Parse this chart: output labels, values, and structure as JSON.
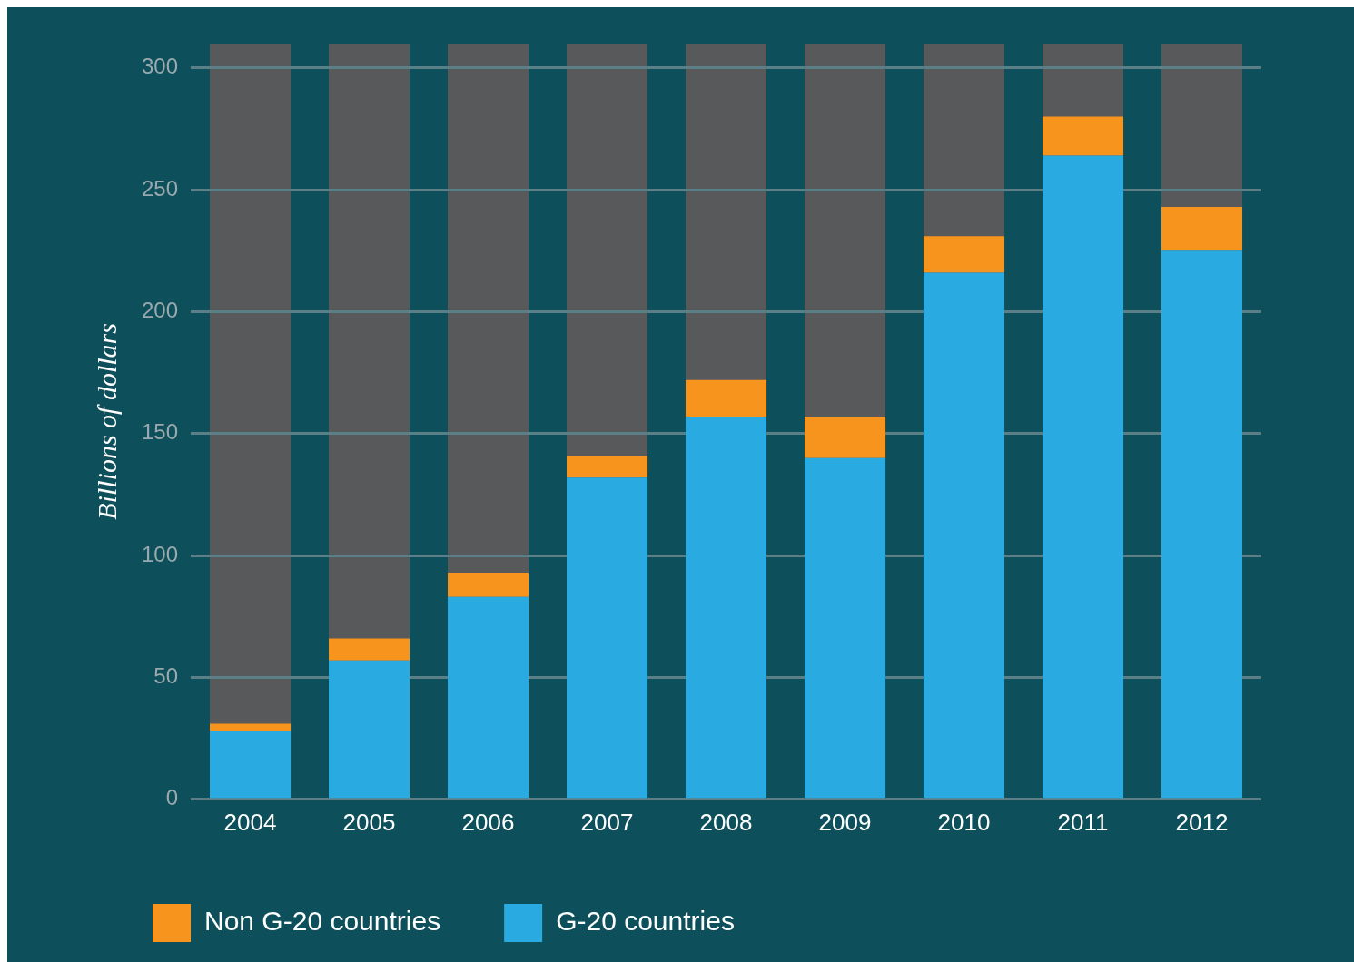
{
  "chart_data": {
    "type": "bar",
    "stacked": true,
    "ylabel": "Billions of dollars",
    "categories": [
      "2004",
      "2005",
      "2006",
      "2007",
      "2008",
      "2009",
      "2010",
      "2011",
      "2012"
    ],
    "series": [
      {
        "name": "G-20 countries",
        "color": "#29abe2",
        "values": [
          28,
          57,
          83,
          132,
          157,
          140,
          216,
          264,
          225
        ]
      },
      {
        "name": "Non G-20 countries",
        "color": "#f7941d",
        "values": [
          3,
          9,
          10,
          9,
          15,
          17,
          15,
          16,
          18
        ]
      }
    ],
    "ylim": [
      0,
      310
    ],
    "yticks": [
      0,
      50,
      100,
      150,
      200,
      250,
      300
    ],
    "grid": "y",
    "legend": "bottom"
  }
}
